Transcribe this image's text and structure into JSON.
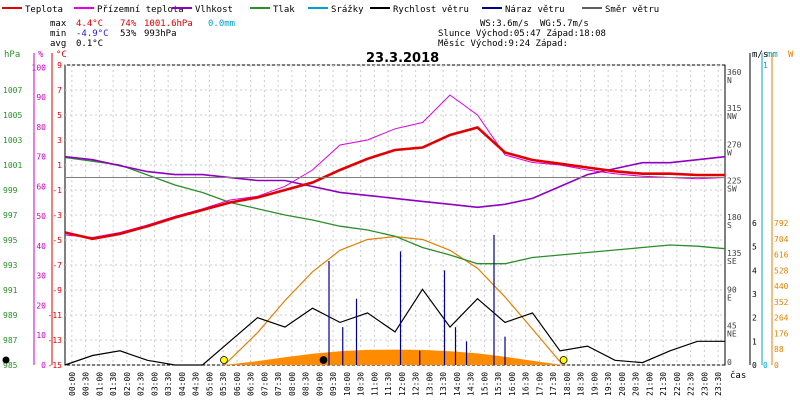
{
  "legend": [
    {
      "label": "Teplota",
      "color": "#e00000"
    },
    {
      "label": "Přízemní teplota",
      "color": "#e000e0"
    },
    {
      "label": "Vlhkost",
      "color": "#9000c0"
    },
    {
      "label": "Tlak",
      "color": "#2a8f2a"
    },
    {
      "label": "Srážky",
      "color": "#00a0d0"
    },
    {
      "label": "Rychlost větru",
      "color": "#000000"
    },
    {
      "label": "Náraz větru",
      "color": "#00008b"
    },
    {
      "label": "Směr větru",
      "color": "#606060"
    }
  ],
  "stats": {
    "max": {
      "label": "max",
      "temp": "4.4°C",
      "hum": "74%",
      "press": "1001.6hPa",
      "rain": "0.0mm"
    },
    "min": {
      "label": "min",
      "temp": "-4.9°C",
      "hum": "53%",
      "press": "993hPa"
    },
    "avg": {
      "label": "avg",
      "temp": "0.1°C"
    },
    "ws": "WS:3.6m/s",
    "wg": "WG:5.7m/s",
    "sun": "Slunce Východ:05:47  Západ:18:08",
    "moon": "Měsíc  Východ:9:24   Západ:"
  },
  "chart_data": {
    "type": "line",
    "title": "23.3.2018",
    "axes": {
      "pressure_title": "hPa",
      "humidity_title": "%",
      "temp_title": "°C",
      "wind_title": "m/s",
      "rain_title": "mm",
      "solar_title": "W",
      "time_title": "čas",
      "pressure_ticks": [
        "985",
        "987",
        "989",
        "991",
        "993",
        "995",
        "997",
        "999",
        "1001",
        "1003",
        "1005",
        "1007"
      ],
      "humidity_ticks": [
        "0",
        "10",
        "20",
        "30",
        "40",
        "50",
        "60",
        "70",
        "80",
        "90",
        "100"
      ],
      "temp_ticks": [
        "-15",
        "-13",
        "-11",
        "-9",
        "-7",
        "-5",
        "-3",
        "-1",
        "1",
        "3",
        "5",
        "7",
        "9"
      ],
      "direction_ticks": [
        "0",
        "45 NE",
        "90 E",
        "135 SE",
        "180 S",
        "225 SW",
        "270 W",
        "315 NW",
        "360 N"
      ],
      "direction_labels": [
        "0",
        "45",
        "90",
        "135",
        "180",
        "225",
        "270",
        "315",
        "360"
      ],
      "direction_names": [
        "",
        "NE",
        "E",
        "SE",
        "S",
        "SW",
        "W",
        "NW",
        "N"
      ],
      "wind_ticks": [
        "0",
        "1",
        "2",
        "3",
        "4",
        "5",
        "6"
      ],
      "rain_ticks": [
        "0",
        "1"
      ],
      "solar_ticks": [
        "0",
        "88",
        "176",
        "264",
        "352",
        "440",
        "528",
        "616",
        "704",
        "792"
      ],
      "temp_range": [
        -15,
        10
      ],
      "time_range_h": [
        0,
        24
      ]
    },
    "time_ticks": [
      "00:00",
      "00:30",
      "01:00",
      "01:30",
      "02:00",
      "02:30",
      "03:00",
      "03:30",
      "04:00",
      "04:30",
      "05:00",
      "05:30",
      "06:00",
      "06:30",
      "07:00",
      "07:30",
      "08:00",
      "08:30",
      "09:00",
      "09:30",
      "10:00",
      "10:30",
      "11:00",
      "11:30",
      "12:00",
      "12:30",
      "13:00",
      "13:30",
      "14:00",
      "14:30",
      "15:00",
      "15:30",
      "16:00",
      "16:30",
      "17:00",
      "17:30",
      "18:00",
      "18:30",
      "19:00",
      "19:30",
      "20:00",
      "20:30",
      "21:00",
      "21:30",
      "22:00",
      "22:30",
      "23:00",
      "23:30"
    ],
    "series": [
      {
        "name": "Teplota",
        "unit": "°C",
        "x": [
          0,
          1,
          2,
          3,
          4,
          5,
          6,
          7,
          8,
          9,
          10,
          11,
          12,
          13,
          14,
          15,
          16,
          17,
          18,
          19,
          20,
          21,
          22,
          23,
          24
        ],
        "values": [
          -4.4,
          -4.9,
          -4.5,
          -3.9,
          -3.2,
          -2.6,
          -2.0,
          -1.6,
          -1.0,
          -0.4,
          0.6,
          1.5,
          2.2,
          2.4,
          3.4,
          4.0,
          2.0,
          1.4,
          1.1,
          0.8,
          0.5,
          0.3,
          0.3,
          0.2,
          0.2
        ]
      },
      {
        "name": "Přízemní teplota",
        "unit": "°C",
        "x": [
          0,
          1,
          2,
          3,
          4,
          5,
          6,
          7,
          8,
          9,
          10,
          11,
          12,
          13,
          14,
          15,
          16,
          17,
          18,
          19,
          20,
          21,
          22,
          23,
          24
        ],
        "values": [
          -4.6,
          -4.8,
          -4.4,
          -3.8,
          -3.1,
          -2.5,
          -1.8,
          -1.5,
          -0.7,
          0.6,
          2.6,
          3.0,
          3.9,
          4.4,
          6.6,
          5.0,
          1.8,
          1.2,
          1.0,
          0.6,
          0.3,
          0.1,
          0.0,
          -0.1,
          0.0
        ]
      },
      {
        "name": "Vlhkost",
        "unit": "%",
        "x": [
          0,
          1,
          2,
          3,
          4,
          5,
          6,
          7,
          8,
          9,
          10,
          11,
          12,
          13,
          14,
          15,
          16,
          17,
          18,
          19,
          20,
          21,
          22,
          23,
          24
        ],
        "values": [
          70,
          69,
          67,
          65,
          64,
          64,
          63,
          62,
          62,
          60,
          58,
          57,
          56,
          55,
          54,
          53,
          54,
          56,
          60,
          64,
          66,
          68,
          68,
          69,
          70
        ]
      },
      {
        "name": "Tlak",
        "unit": "hPa",
        "x": [
          0,
          1,
          2,
          3,
          4,
          5,
          6,
          7,
          8,
          9,
          10,
          11,
          12,
          13,
          14,
          15,
          16,
          17,
          18,
          19,
          20,
          21,
          22,
          23,
          24
        ],
        "values": [
          1001.6,
          1001.3,
          1001.0,
          1000.2,
          999.4,
          998.8,
          998.0,
          997.5,
          997.0,
          996.6,
          996.1,
          995.8,
          995.3,
          994.4,
          993.8,
          993.1,
          993.1,
          993.6,
          993.8,
          994.0,
          994.2,
          994.4,
          994.6,
          994.5,
          994.3
        ]
      },
      {
        "name": "Rychlost větru",
        "unit": "m/s",
        "x": [
          0,
          1,
          2,
          3,
          4,
          5,
          6,
          7,
          8,
          9,
          10,
          11,
          12,
          13,
          14,
          15,
          16,
          17,
          18,
          19,
          20,
          21,
          22,
          23,
          24
        ],
        "values": [
          0.0,
          0.4,
          0.6,
          0.2,
          0.0,
          0.0,
          1.0,
          2.0,
          1.6,
          2.4,
          1.8,
          2.2,
          1.4,
          3.2,
          1.6,
          2.8,
          1.8,
          2.2,
          0.6,
          0.8,
          0.2,
          0.1,
          0.6,
          1.0,
          1.0
        ]
      },
      {
        "name": "Náraz větru",
        "unit": "m/s",
        "x": [
          9.6,
          10.1,
          10.6,
          12.2,
          12.9,
          13.8,
          14.2,
          14.6,
          15.6,
          16.0
        ],
        "values": [
          4.4,
          1.6,
          2.8,
          4.8,
          0.6,
          4.0,
          1.6,
          1.0,
          5.5,
          1.2
        ]
      },
      {
        "name": "Sluneční záření",
        "unit": "W",
        "x": [
          5.8,
          7,
          8,
          9,
          10,
          11,
          12,
          13,
          14,
          15,
          16,
          17,
          18.1
        ],
        "values": [
          0,
          180,
          360,
          520,
          640,
          700,
          716,
          700,
          640,
          540,
          380,
          200,
          0
        ]
      }
    ]
  }
}
